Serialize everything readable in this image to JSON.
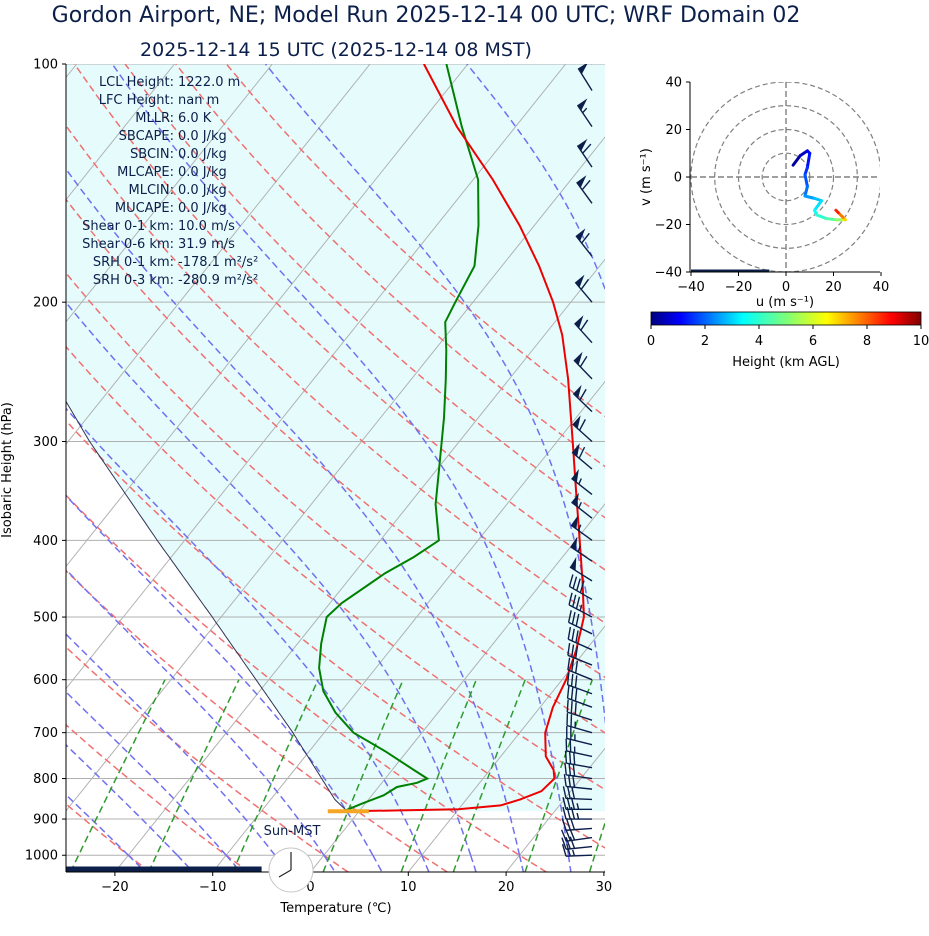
{
  "header": {
    "title_line1": "Gordon Airport, NE; Model Run 2025-12-14 00 UTC; WRF Domain 02",
    "title_line2": "2025-12-14 15 UTC  (2025-12-14 08 MST)"
  },
  "stats": [
    {
      "label": "LCL Height:",
      "value": "1222.0 m"
    },
    {
      "label": "LFC Height:",
      "value": "nan m"
    },
    {
      "label": "MLLR:",
      "value": "6.0 K"
    },
    {
      "label": "SBCAPE:",
      "value": "0.0 J/kg"
    },
    {
      "label": "SBCIN:",
      "value": "0.0 J/kg"
    },
    {
      "label": "MLCAPE:",
      "value": "0.0 J/kg"
    },
    {
      "label": "MLCIN:",
      "value": "0.0 J/kg"
    },
    {
      "label": "MUCAPE:",
      "value": "0.0 J/kg"
    },
    {
      "label": "Shear 0-1 km:",
      "value": "10.0 m/s"
    },
    {
      "label": "Shear 0-6 km:",
      "value": "31.9 m/s"
    },
    {
      "label": "SRH 0-1 km:",
      "value": "-178.1 m²/s²"
    },
    {
      "label": "SRH 0-3 km:",
      "value": "-280.9 m²/s²"
    }
  ],
  "sun_label": "Sun-MST",
  "colors": {
    "temperature": "#ee0000",
    "dewpoint": "#008000",
    "dry_adiabat": "#f07070",
    "moist_adiabat": "#7070f0",
    "mixing_ratio": "#2e9a2e",
    "parcel_fill": "#e6fcfc",
    "barb": "#0b1f4a",
    "title": "#0b1f4a"
  },
  "chart_data": [
    {
      "type": "line",
      "subtype": "skew-t log-p",
      "xlabel": "Temperature (℃)",
      "ylabel": "Isobaric Height (hPa)",
      "xlim": [
        -25,
        30
      ],
      "ylim": [
        1050,
        100
      ],
      "y_scale": "log",
      "xticks": [
        -20,
        -10,
        0,
        10,
        20,
        30
      ],
      "yticks": [
        1000,
        900,
        800,
        700,
        600,
        500,
        400,
        300,
        200,
        100
      ],
      "grid": true,
      "series": [
        {
          "name": "temperature",
          "p": [
            880,
            875,
            865,
            850,
            830,
            800,
            780,
            750,
            700,
            650,
            600,
            550,
            500,
            450,
            400,
            350,
            300,
            250,
            220,
            200,
            180,
            160,
            140,
            120,
            100
          ],
          "t": [
            -1.2,
            10,
            14,
            15.5,
            17,
            17.3,
            16.5,
            14.6,
            12.6,
            11.3,
            10.4,
            9,
            7.1,
            4,
            0.4,
            -3.7,
            -8.4,
            -14,
            -18.2,
            -21.8,
            -26.2,
            -31.5,
            -38,
            -46,
            -54.5
          ]
        },
        {
          "name": "dewpoint",
          "p": [
            880,
            860,
            840,
            820,
            810,
            800,
            780,
            740,
            700,
            660,
            620,
            580,
            540,
            500,
            480,
            440,
            420,
            400,
            360,
            320,
            280,
            250,
            230,
            212,
            200,
            180,
            160,
            140,
            120,
            100
          ],
          "t": [
            -1.6,
            -0.3,
            1.2,
            1.9,
            3.6,
            4.3,
            2.2,
            -2.1,
            -7,
            -10.5,
            -13.5,
            -15.8,
            -17.6,
            -19.2,
            -18.8,
            -16.8,
            -15.2,
            -14,
            -17.3,
            -20.2,
            -23.5,
            -26.5,
            -28.8,
            -31.2,
            -31.8,
            -32.8,
            -35.7,
            -39.5,
            -45.5,
            -52.2
          ]
        },
        {
          "name": "parcel",
          "p": [
            880,
            851,
            800,
            700,
            600,
            500,
            400,
            300,
            200,
            100
          ],
          "t": [
            -1.2,
            -3.4,
            -6.5,
            -13.2,
            -21.3,
            -30.9,
            -42.8,
            -57.8,
            -77.6,
            -103.5
          ]
        }
      ],
      "surface_marker_p": 880,
      "surface_marker_t": [
        -3.2,
        1.0
      ],
      "wind_barbs_p": [
        1000,
        975,
        950,
        925,
        900,
        875,
        850,
        825,
        800,
        775,
        750,
        725,
        700,
        675,
        650,
        625,
        600,
        575,
        550,
        525,
        500,
        475,
        450,
        425,
        400,
        375,
        350,
        325,
        300,
        275,
        250,
        225,
        200,
        175,
        150,
        135,
        120,
        108,
        100
      ],
      "wind_dir_deg": [
        268,
        264,
        262,
        266,
        270,
        270,
        272,
        276,
        278,
        280,
        282,
        284,
        286,
        288,
        290,
        290,
        292,
        292,
        294,
        296,
        298,
        300,
        302,
        304,
        306,
        308,
        308,
        310,
        312,
        314,
        316,
        318,
        320,
        322,
        324,
        326,
        326,
        328,
        328
      ],
      "wind_speed_kt": [
        25,
        30,
        30,
        30,
        35,
        35,
        30,
        30,
        30,
        30,
        25,
        25,
        25,
        30,
        30,
        30,
        30,
        30,
        30,
        30,
        35,
        40,
        50,
        55,
        55,
        55,
        55,
        60,
        60,
        60,
        60,
        60,
        60,
        60,
        60,
        60,
        55,
        50,
        50
      ]
    },
    {
      "type": "line",
      "subtype": "hodograph",
      "xlabel": "u (m s⁻¹)",
      "ylabel": "v (m s⁻¹)",
      "xlim": [
        -40,
        40
      ],
      "ylim": [
        -40,
        40
      ],
      "xticks": [
        -40,
        -20,
        0,
        20,
        40
      ],
      "yticks": [
        -40,
        -20,
        0,
        20,
        40
      ],
      "rings": [
        10,
        20,
        30,
        40
      ],
      "points": [
        {
          "u": 3,
          "v": 5,
          "h": 0.1
        },
        {
          "u": 6,
          "v": 9,
          "h": 0.4
        },
        {
          "u": 9,
          "v": 11,
          "h": 0.8
        },
        {
          "u": 10,
          "v": 10,
          "h": 1.1
        },
        {
          "u": 9,
          "v": 4,
          "h": 1.4
        },
        {
          "u": 8,
          "v": 1,
          "h": 1.7
        },
        {
          "u": 9,
          "v": -4,
          "h": 2.0
        },
        {
          "u": 8,
          "v": -8,
          "h": 2.3
        },
        {
          "u": 12,
          "v": -9,
          "h": 2.7
        },
        {
          "u": 15,
          "v": -10,
          "h": 3.0
        },
        {
          "u": 12,
          "v": -14,
          "h": 3.3
        },
        {
          "u": 13,
          "v": -16,
          "h": 3.7
        },
        {
          "u": 17,
          "v": -17.5,
          "h": 4.2
        },
        {
          "u": 21,
          "v": -18,
          "h": 4.8
        },
        {
          "u": 24,
          "v": -18,
          "h": 5.6
        },
        {
          "u": 25,
          "v": -18,
          "h": 6.5
        },
        {
          "u": 24,
          "v": -17,
          "h": 7.4
        },
        {
          "u": 22,
          "v": -15,
          "h": 8.2
        },
        {
          "u": 21,
          "v": -14,
          "h": 9.0
        }
      ],
      "colorbar": {
        "label": "Height (km AGL)",
        "range": [
          0,
          10
        ],
        "ticks": [
          0,
          2,
          4,
          6,
          8,
          10
        ],
        "colormap": "jet"
      }
    }
  ]
}
